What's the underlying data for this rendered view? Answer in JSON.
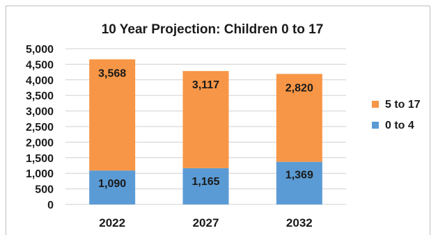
{
  "chart_data": {
    "type": "bar",
    "stacked": true,
    "title": "10 Year Projection: Children 0 to 17",
    "xlabel": "",
    "ylabel": "",
    "categories": [
      "2022",
      "2027",
      "2032"
    ],
    "series": [
      {
        "name": "0 to 4",
        "values": [
          1090,
          1165,
          1369
        ],
        "labels": [
          "1,090",
          "1,165",
          "1,369"
        ],
        "color": "#5b9bd5"
      },
      {
        "name": "5 to 17",
        "values": [
          3568,
          3117,
          2820
        ],
        "labels": [
          "3,568",
          "3,117",
          "2,820"
        ],
        "color": "#f79646"
      }
    ],
    "ylim": [
      0,
      5000
    ],
    "yticks": [
      0,
      500,
      1000,
      1500,
      2000,
      2500,
      3000,
      3500,
      4000,
      4500,
      5000
    ],
    "ytick_labels": [
      "0",
      "500",
      "1,000",
      "1,500",
      "2,000",
      "2,500",
      "3,000",
      "3,500",
      "4,000",
      "4,500",
      "5,000"
    ],
    "grid": true,
    "legend_position": "right"
  }
}
